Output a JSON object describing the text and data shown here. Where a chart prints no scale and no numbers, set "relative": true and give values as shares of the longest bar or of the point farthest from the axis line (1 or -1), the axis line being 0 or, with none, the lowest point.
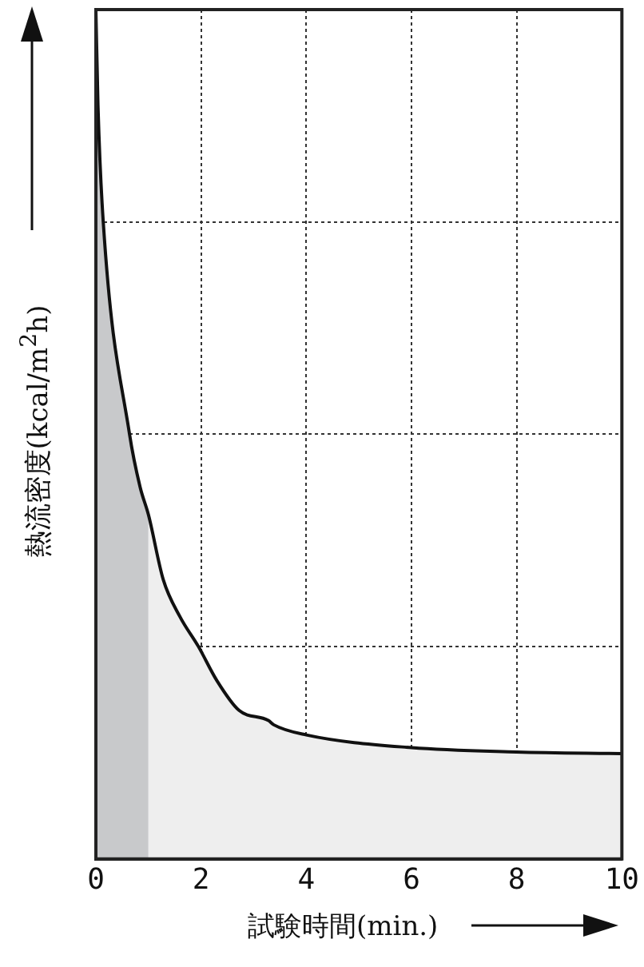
{
  "chart_data": {
    "type": "line",
    "relative": true,
    "xlabel": "試験時間(min.)",
    "ylabel": "熱流密度(kcal/m$^{2}$h)",
    "xlim": [
      0,
      10
    ],
    "xticks": [
      0,
      2,
      4,
      6,
      8,
      10
    ],
    "grid": true,
    "legend": false,
    "marker": "none",
    "line_style": "solid",
    "series": [
      {
        "type": "area",
        "color": "#c8c9cb",
        "x": [
          0,
          0.04,
          0.14,
          0.64,
          0.84,
          1
        ],
        "values": [
          1,
          0.887,
          0.75,
          0.5,
          0.438,
          0.405
        ]
      },
      {
        "type": "area",
        "color": "#eeeeee",
        "x": [
          1,
          1.28,
          1.6,
          1.95,
          2.3,
          2.72,
          3.28,
          3.38,
          4,
          6,
          8,
          10
        ],
        "values": [
          0.405,
          0.329,
          0.285,
          0.25,
          0.21,
          0.175,
          0.163,
          0.158,
          0.146,
          0.131,
          0.126,
          0.124
        ]
      },
      {
        "type": "line",
        "color": "#111111",
        "x": [
          0,
          0.04,
          0.14,
          0.64,
          0.84,
          1,
          1.28,
          1.6,
          1.95,
          2.3,
          2.72,
          3.28,
          3.38,
          4,
          6,
          8,
          10
        ],
        "values": [
          1,
          0.887,
          0.75,
          0.5,
          0.438,
          0.405,
          0.329,
          0.285,
          0.25,
          0.21,
          0.175,
          0.163,
          0.158,
          0.146,
          0.131,
          0.126,
          0.124
        ]
      }
    ]
  }
}
